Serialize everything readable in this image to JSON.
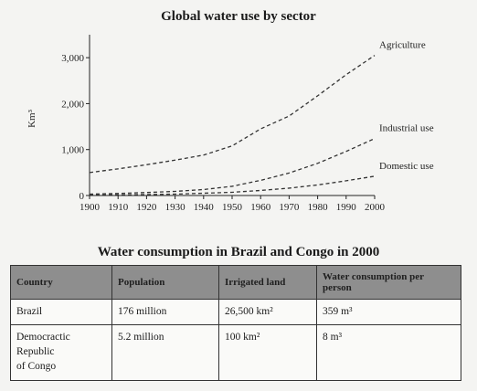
{
  "chart_data": {
    "type": "line",
    "title": "Global water use by sector",
    "ylabel": "Km³",
    "xlabel": "",
    "x": [
      1900,
      1910,
      1920,
      1930,
      1940,
      1950,
      1960,
      1970,
      1980,
      1990,
      2000
    ],
    "xlim": [
      1900,
      2000
    ],
    "ylim": [
      0,
      3500
    ],
    "yticks": [
      0,
      1000,
      2000,
      3000
    ],
    "ytick_labels": [
      "0",
      "1,000",
      "2,000",
      "3,000"
    ],
    "xtick_labels": [
      "1900",
      "1910",
      "1920",
      "1930",
      "1940",
      "1950",
      "1960",
      "1970",
      "1980",
      "1990",
      "2000"
    ],
    "grid": false,
    "legend": "none",
    "series": [
      {
        "name": "Agriculture",
        "values": [
          500,
          580,
          670,
          770,
          880,
          1080,
          1450,
          1730,
          2170,
          2630,
          3050
        ]
      },
      {
        "name": "Industrial use",
        "values": [
          30,
          45,
          65,
          90,
          130,
          200,
          330,
          490,
          700,
          960,
          1240
        ]
      },
      {
        "name": "Domestic use",
        "values": [
          10,
          15,
          20,
          30,
          50,
          70,
          110,
          160,
          230,
          320,
          420
        ]
      }
    ]
  },
  "table": {
    "title": "Water consumption in Brazil and Congo in 2000",
    "headers": [
      "Country",
      "Population",
      "Irrigated land",
      "Water consumption per person"
    ],
    "rows": [
      [
        "Brazil",
        "176 million",
        "26,500 km²",
        "359 m³"
      ],
      [
        "Democractic\nRepublic\nof Congo",
        "5.2 million",
        "100 km²",
        "8 m³"
      ]
    ]
  }
}
